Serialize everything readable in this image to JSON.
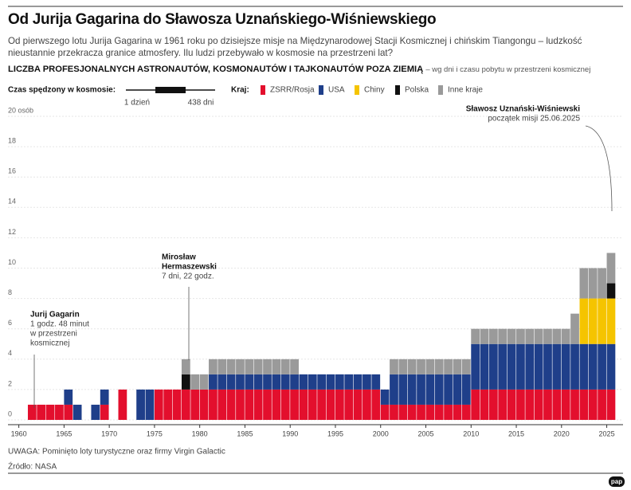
{
  "header": {
    "title": "Od Jurija Gagarina do Sławosza Uznańskiego-Wiśniewskiego",
    "subtitle": "Od pierwszego lotu Jurija Gagarina w 1961 roku po dzisiejsze misje na Międzynarodowej Stacji Kosmicznej i chińskim Tiangongu – ludzkość nieustannie przekracza granice atmosfery. Ilu ludzi przebywało w kosmosie na przestrzeni lat?",
    "heading": "LICZBA PROFESJONALNYCH ASTRONAUTÓW, KOSMONAUTÓW I TAJKONAUTÓW POZA ZIEMIĄ",
    "heading_note": "– wg dni i czasu pobytu w przestrzeni kosmicznej"
  },
  "time_legend": {
    "label": "Czas spędzony w kosmosie:",
    "min": "1 dzień",
    "max": "438 dni"
  },
  "country_legend_label": "Kraj:",
  "chart_data": {
    "type": "stacked-bar",
    "x": [
      1961,
      1962,
      1963,
      1964,
      1965,
      1966,
      1967,
      1968,
      1969,
      1970,
      1971,
      1972,
      1973,
      1974,
      1975,
      1976,
      1977,
      1978,
      1979,
      1980,
      1981,
      1982,
      1983,
      1984,
      1985,
      1986,
      1987,
      1988,
      1989,
      1990,
      1991,
      1992,
      1993,
      1994,
      1995,
      1996,
      1997,
      1998,
      1999,
      2000,
      2001,
      2002,
      2003,
      2004,
      2005,
      2006,
      2007,
      2008,
      2009,
      2010,
      2011,
      2012,
      2013,
      2014,
      2015,
      2016,
      2017,
      2018,
      2019,
      2020,
      2021,
      2022,
      2023,
      2024,
      2025
    ],
    "series": [
      {
        "name": "ZSRR/Rosja",
        "color": "#e30f2d",
        "values": [
          1,
          1,
          1,
          1,
          1,
          0,
          0,
          0,
          1,
          0,
          2,
          0,
          0,
          0,
          2,
          2,
          2,
          2,
          2,
          2,
          2,
          2,
          2,
          2,
          2,
          2,
          2,
          2,
          2,
          2,
          2,
          2,
          2,
          2,
          2,
          2,
          2,
          2,
          2,
          1,
          1,
          1,
          1,
          1,
          1,
          1,
          1,
          1,
          1,
          2,
          2,
          2,
          2,
          2,
          2,
          2,
          2,
          2,
          2,
          2,
          2,
          2,
          2,
          2,
          2
        ]
      },
      {
        "name": "USA",
        "color": "#1f3f8a",
        "values": [
          0,
          0,
          0,
          0,
          1,
          1,
          0,
          1,
          1,
          0,
          0,
          0,
          2,
          2,
          0,
          0,
          0,
          0,
          0,
          0,
          1,
          1,
          1,
          1,
          1,
          1,
          1,
          1,
          1,
          1,
          1,
          1,
          1,
          1,
          1,
          1,
          1,
          1,
          1,
          1,
          2,
          2,
          2,
          2,
          2,
          2,
          2,
          2,
          2,
          3,
          3,
          3,
          3,
          3,
          3,
          3,
          3,
          3,
          3,
          3,
          3,
          3,
          3,
          3,
          3
        ]
      },
      {
        "name": "Chiny",
        "color": "#f5c400",
        "values": [
          0,
          0,
          0,
          0,
          0,
          0,
          0,
          0,
          0,
          0,
          0,
          0,
          0,
          0,
          0,
          0,
          0,
          0,
          0,
          0,
          0,
          0,
          0,
          0,
          0,
          0,
          0,
          0,
          0,
          0,
          0,
          0,
          0,
          0,
          0,
          0,
          0,
          0,
          0,
          0,
          0,
          0,
          0,
          0,
          0,
          0,
          0,
          0,
          0,
          0,
          0,
          0,
          0,
          0,
          0,
          0,
          0,
          0,
          0,
          0,
          0,
          3,
          3,
          3,
          3
        ]
      },
      {
        "name": "Polska",
        "color": "#111111",
        "values": [
          0,
          0,
          0,
          0,
          0,
          0,
          0,
          0,
          0,
          0,
          0,
          0,
          0,
          0,
          0,
          0,
          0,
          1,
          0,
          0,
          0,
          0,
          0,
          0,
          0,
          0,
          0,
          0,
          0,
          0,
          0,
          0,
          0,
          0,
          0,
          0,
          0,
          0,
          0,
          0,
          0,
          0,
          0,
          0,
          0,
          0,
          0,
          0,
          0,
          0,
          0,
          0,
          0,
          0,
          0,
          0,
          0,
          0,
          0,
          0,
          0,
          0,
          0,
          0,
          1
        ]
      },
      {
        "name": "Inne kraje",
        "color": "#9a9a9a",
        "values": [
          0,
          0,
          0,
          0,
          0,
          0,
          0,
          0,
          0,
          0,
          0,
          0,
          0,
          0,
          0,
          0,
          0,
          1,
          1,
          1,
          1,
          1,
          1,
          1,
          1,
          1,
          1,
          1,
          1,
          1,
          0,
          0,
          0,
          0,
          0,
          0,
          0,
          0,
          0,
          0,
          1,
          1,
          1,
          1,
          1,
          1,
          1,
          1,
          1,
          1,
          1,
          1,
          1,
          1,
          1,
          1,
          1,
          1,
          1,
          1,
          2,
          2,
          2,
          2,
          2
        ]
      }
    ],
    "xlim": [
      1958.8,
      2026.8
    ],
    "xticks": [
      1960,
      1965,
      1970,
      1975,
      1980,
      1985,
      1990,
      1995,
      2000,
      2005,
      2010,
      2015,
      2020,
      2025
    ],
    "ylim": [
      0,
      20
    ],
    "yticks": [
      0,
      2,
      4,
      6,
      8,
      10,
      12,
      14,
      16,
      18,
      {
        "value": 20,
        "label": "20 osób"
      }
    ],
    "grid": true,
    "annotations": [
      {
        "title": [
          "Jurij Gagarin"
        ],
        "text": [
          "1 godz. 48 minut",
          "w przestrzeni",
          "kosmicznej"
        ]
      },
      {
        "title": [
          "Mirosław",
          "Hermaszewski"
        ],
        "text": [
          "7 dni, 22 godz."
        ]
      },
      {
        "title": [
          "Sławosz Uznański-Wiśniewski"
        ],
        "text": [
          "początek misji 25.06.2025"
        ]
      }
    ]
  },
  "notes": {
    "note": "UWAGA: Pominięto loty turystyczne oraz firmy Virgin Galactic",
    "source": "Źródło: NASA",
    "logo": "pap"
  }
}
